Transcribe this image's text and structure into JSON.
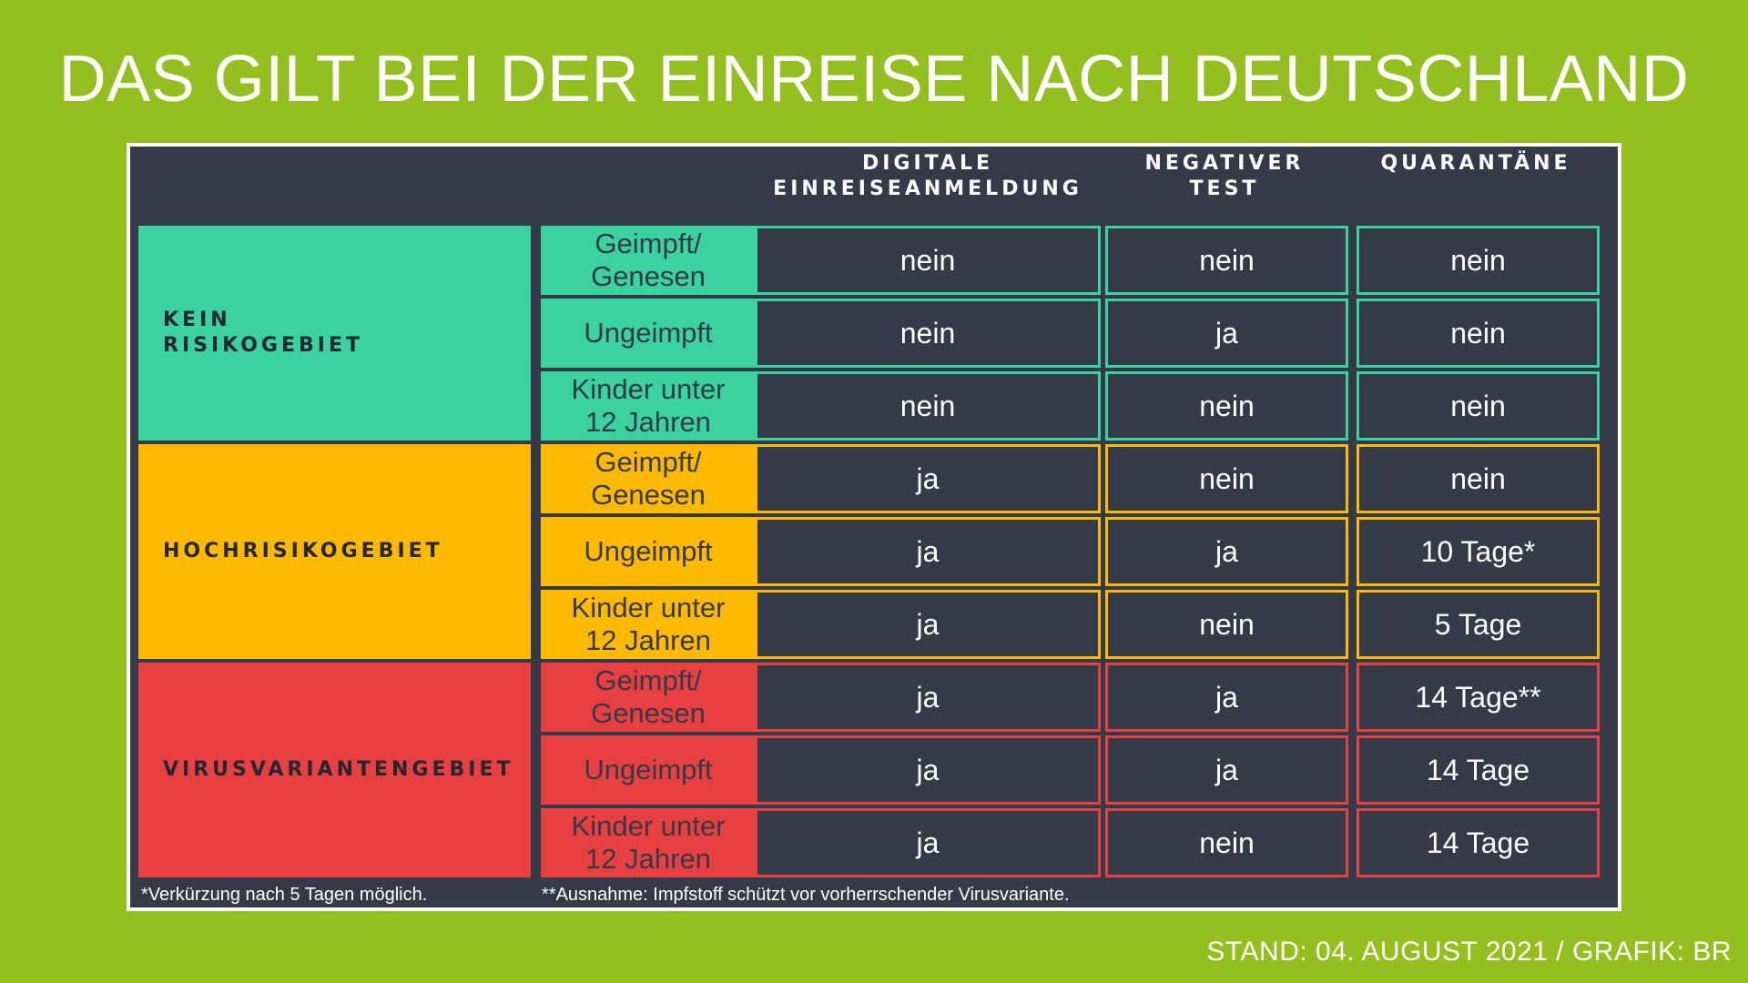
{
  "title": "DAS GILT BEI DER EINREISE NACH DEUTSCHLAND",
  "columns": [
    "DIGITALE\nEINREISEANMELDUNG",
    "NEGATIVER\nTEST",
    "QUARANTÄNE"
  ],
  "groups": [
    {
      "label": "KEIN\nRISIKOGEBIET",
      "color": "#3ad39f",
      "rows": [
        {
          "sub": "Geimpft/\nGenesen",
          "values": [
            "nein",
            "nein",
            "nein"
          ]
        },
        {
          "sub": "Ungeimpft",
          "values": [
            "nein",
            "ja",
            "nein"
          ]
        },
        {
          "sub": "Kinder unter\n12 Jahren",
          "values": [
            "nein",
            "nein",
            "nein"
          ]
        }
      ]
    },
    {
      "label": "HOCHRISIKOGEBIET",
      "color": "#ffba00",
      "rows": [
        {
          "sub": "Geimpft/\nGenesen",
          "values": [
            "ja",
            "nein",
            "nein"
          ]
        },
        {
          "sub": "Ungeimpft",
          "values": [
            "ja",
            "ja",
            "10 Tage*"
          ]
        },
        {
          "sub": "Kinder unter\n12 Jahren",
          "values": [
            "ja",
            "nein",
            "5 Tage"
          ]
        }
      ]
    },
    {
      "label": "VIRUSVARIANTENGEBIET",
      "color": "#e83f40",
      "rows": [
        {
          "sub": "Geimpft/\nGenesen",
          "values": [
            "ja",
            "ja",
            "14 Tage**"
          ]
        },
        {
          "sub": "Ungeimpft",
          "values": [
            "ja",
            "ja",
            "14 Tage"
          ]
        },
        {
          "sub": "Kinder unter\n12 Jahren",
          "values": [
            "ja",
            "nein",
            "14 Tage"
          ]
        }
      ]
    }
  ],
  "footnotes": [
    "*Verkürzung nach 5 Tagen möglich.",
    "**Ausnahme: Impfstoff schützt vor vorherrschender Virusvariante."
  ],
  "credit": "STAND: 04. AUGUST 2021 / GRAFIK: BR"
}
